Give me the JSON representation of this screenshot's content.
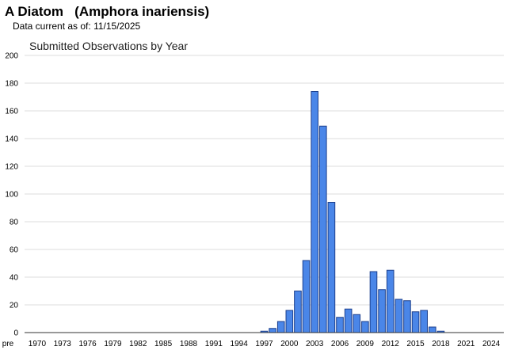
{
  "header": {
    "species_common": "A Diatom",
    "species_scientific": "(Amphora inariensis)",
    "data_current_label": "Data current as of:",
    "data_current_date": "11/15/2025"
  },
  "chart_data": {
    "type": "bar",
    "title": "Submitted Observations by Year",
    "xlabel": "",
    "ylabel": "",
    "ylim": [
      0,
      200
    ],
    "yticks": [
      0,
      20,
      40,
      60,
      80,
      100,
      120,
      140,
      160,
      180,
      200
    ],
    "grid": true,
    "legend": "none",
    "bar_color": "#4a86e8",
    "bar_stroke": "#1c3f8c",
    "categories": [
      "pre 1970",
      "1970",
      "1971",
      "1972",
      "1973",
      "1974",
      "1975",
      "1976",
      "1977",
      "1978",
      "1979",
      "1980",
      "1981",
      "1982",
      "1983",
      "1984",
      "1985",
      "1986",
      "1987",
      "1988",
      "1989",
      "1990",
      "1991",
      "1992",
      "1993",
      "1994",
      "1995",
      "1996",
      "1997",
      "1998",
      "1999",
      "2000",
      "2001",
      "2002",
      "2003",
      "2004",
      "2005",
      "2006",
      "2007",
      "2008",
      "2009",
      "2010",
      "2011",
      "2012",
      "2013",
      "2014",
      "2015",
      "2016",
      "2017",
      "2018",
      "2019",
      "2020",
      "2021",
      "2022",
      "2023",
      "2024",
      "2025"
    ],
    "tick_labels": [
      "pre",
      "1970",
      "1973",
      "1976",
      "1979",
      "1982",
      "1985",
      "1988",
      "1991",
      "1994",
      "1997",
      "2000",
      "2003",
      "2006",
      "2009",
      "2012",
      "2015",
      "2018",
      "2021",
      "2024"
    ],
    "values": [
      0,
      0,
      0,
      0,
      0,
      0,
      0,
      0,
      0,
      0,
      0,
      0,
      0,
      0,
      0,
      0,
      0,
      0,
      0,
      0,
      0,
      0,
      0,
      0,
      0,
      0,
      0,
      0,
      1,
      3,
      8,
      16,
      30,
      52,
      174,
      149,
      94,
      11,
      17,
      13,
      8,
      44,
      31,
      45,
      24,
      23,
      15,
      16,
      4,
      1,
      0,
      0,
      0,
      0,
      0,
      0,
      0
    ]
  }
}
